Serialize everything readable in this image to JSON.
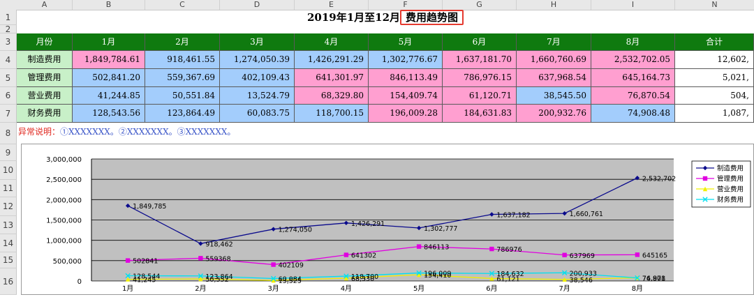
{
  "columns": [
    "A",
    "B",
    "C",
    "D",
    "E",
    "F",
    "G",
    "H",
    "I",
    "N"
  ],
  "rows": [
    "1",
    "2",
    "3",
    "4",
    "5",
    "6",
    "7",
    "8",
    "9",
    "10",
    "11",
    "12",
    "13",
    "14",
    "15",
    "16"
  ],
  "title": {
    "before": "2019年1月至12月",
    "boxed": "费用趋势图"
  },
  "table": {
    "headers": [
      "月份",
      "1月",
      "2月",
      "3月",
      "4月",
      "5月",
      "6月",
      "7月",
      "8月",
      "合计"
    ],
    "rows": [
      {
        "label": "制造费用",
        "values": [
          "1,849,784.61",
          "918,461.55",
          "1,274,050.39",
          "1,426,291.29",
          "1,302,776.67",
          "1,637,181.70",
          "1,660,760.69",
          "2,532,702.05"
        ],
        "total": "12,602,",
        "colors": [
          "pink",
          "blue",
          "blue",
          "blue",
          "blue",
          "pink",
          "pink",
          "pink"
        ]
      },
      {
        "label": "管理费用",
        "values": [
          "502,841.20",
          "559,367.69",
          "402,109.43",
          "641,301.97",
          "846,113.49",
          "786,976.15",
          "637,968.54",
          "645,164.73"
        ],
        "total": "5,021,",
        "colors": [
          "blue",
          "blue",
          "blue",
          "pink",
          "pink",
          "pink",
          "pink",
          "pink"
        ]
      },
      {
        "label": "营业费用",
        "values": [
          "41,244.85",
          "50,551.84",
          "13,524.79",
          "68,329.80",
          "154,409.74",
          "61,120.71",
          "38,545.50",
          "76,870.54"
        ],
        "total": "504,",
        "colors": [
          "blue",
          "blue",
          "blue",
          "pink",
          "pink",
          "pink",
          "blue",
          "pink"
        ]
      },
      {
        "label": "财务费用",
        "values": [
          "128,543.56",
          "123,864.49",
          "60,083.75",
          "118,700.15",
          "196,009.28",
          "184,631.83",
          "200,932.76",
          "74,908.48"
        ],
        "total": "1,087,",
        "colors": [
          "blue",
          "blue",
          "blue",
          "blue",
          "pink",
          "pink",
          "pink",
          "blue"
        ]
      }
    ]
  },
  "note": {
    "prefix": "异常说明：",
    "text": "①XXXXXXX。②XXXXXXX。③XXXXXXX。"
  },
  "chart_data": {
    "type": "line",
    "categories": [
      "1月",
      "2月",
      "3月",
      "4月",
      "5月",
      "6月",
      "7月",
      "8月"
    ],
    "ylim": [
      0,
      3000000
    ],
    "yticks": [
      "0",
      "500,000",
      "1,000,000",
      "1,500,000",
      "2,000,000",
      "2,500,000",
      "3,000,000"
    ],
    "ytick_values": [
      0,
      500000,
      1000000,
      1500000,
      2000000,
      2500000,
      3000000
    ],
    "grid": true,
    "legend_position": "right",
    "series": [
      {
        "name": "制造费用",
        "color": "#0a0a8c",
        "marker": "diamond",
        "values": [
          1849785,
          918462,
          1274050,
          1426291,
          1302777,
          1637182,
          1660761,
          2532702
        ],
        "labels": [
          "1,849,785",
          "918,462",
          "1,274,050",
          "1,426,291",
          "1,302,777",
          "1,637,182",
          "1,660,761",
          "2,532,702"
        ]
      },
      {
        "name": "管理费用",
        "color": "#e000e0",
        "marker": "square",
        "values": [
          502841,
          559368,
          402109,
          641302,
          846113,
          786976,
          637969,
          645165
        ],
        "labels": [
          "502841",
          "559368",
          "402109",
          "641302",
          "846113",
          "786976",
          "637969",
          "645165"
        ]
      },
      {
        "name": "营业费用",
        "color": "#f0f000",
        "marker": "triangle",
        "values": [
          41245,
          50552,
          13525,
          68330,
          154410,
          61121,
          38546,
          76871
        ],
        "labels": [
          "41,245",
          "50,552",
          "13,525",
          "68,330",
          "154,410",
          "61,121",
          "38,546",
          "76,871"
        ]
      },
      {
        "name": "财务费用",
        "color": "#00e0f0",
        "marker": "x",
        "values": [
          128544,
          123864,
          60084,
          118700,
          196009,
          184632,
          200933,
          74908
        ],
        "labels": [
          "128,544",
          "123,864",
          "60,084",
          "118,700",
          "196,009",
          "184,632",
          "200,933",
          "74,908"
        ]
      }
    ]
  }
}
